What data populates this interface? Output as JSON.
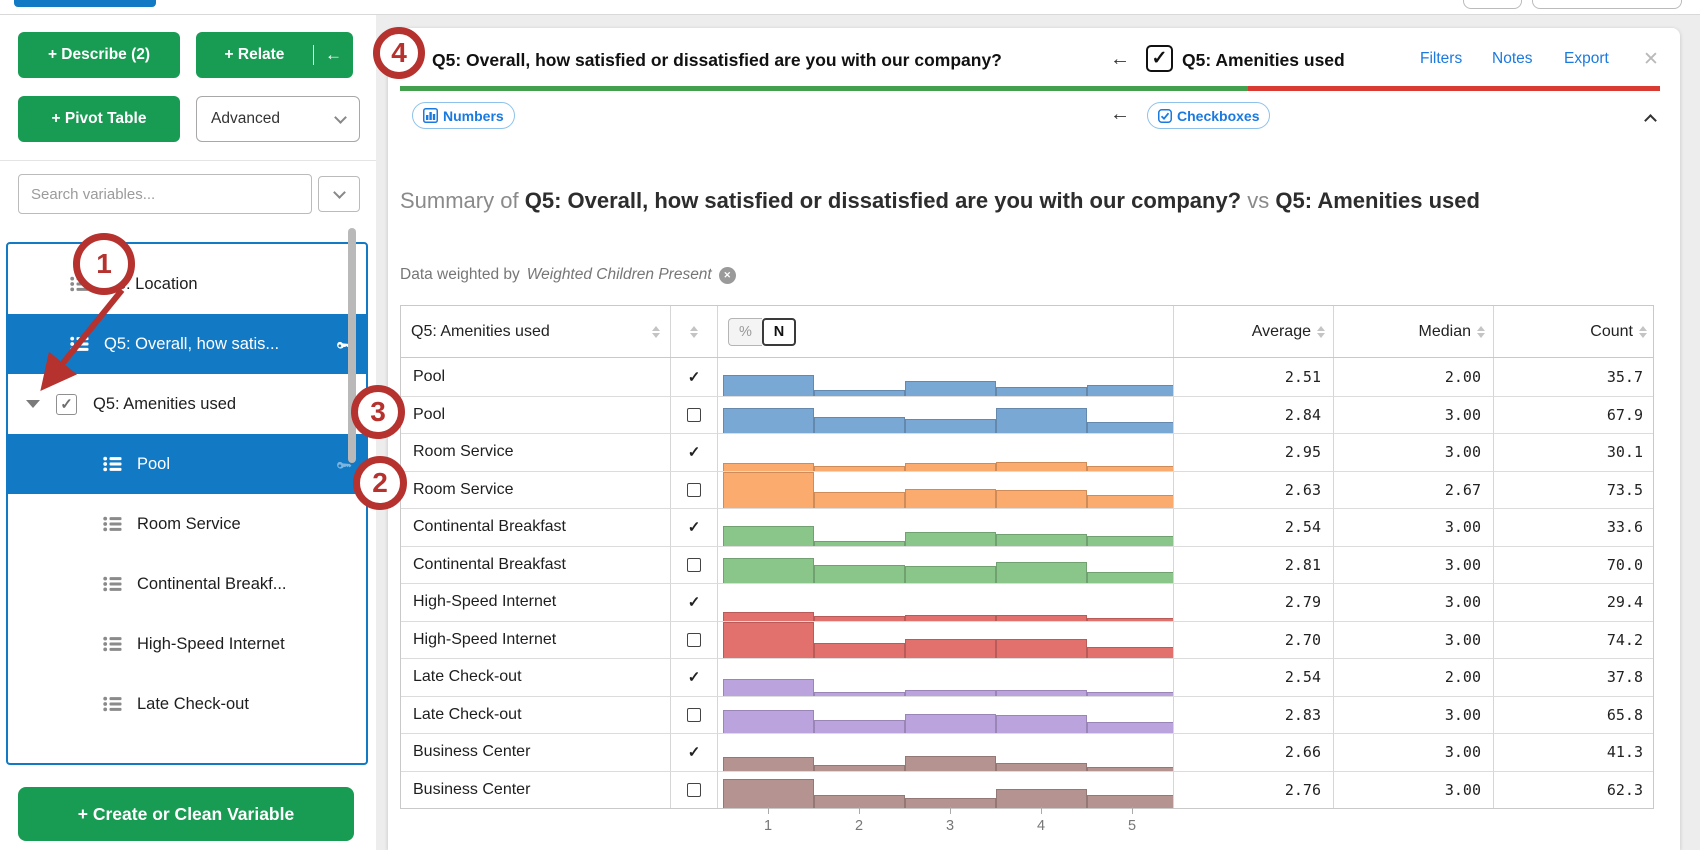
{
  "colors": {
    "brand_green": "#189b52",
    "selection_blue": "#1279c5",
    "link_blue": "#1a7ae0",
    "underline_green": "#44a04e",
    "underline_red": "#d93a32",
    "annotation_red": "#b5322e"
  },
  "sidebar": {
    "buttons": {
      "describe": "+ Describe (2)",
      "relate": "+ Relate",
      "relate_back": "←",
      "pivot": "+ Pivot Table",
      "advanced": "Advanced"
    },
    "search_placeholder": "Search variables...",
    "tree": [
      {
        "label": "Q3: Location",
        "icon": true,
        "indent": 1
      },
      {
        "label": "Q5: Overall, how satis...",
        "icon": true,
        "indent": 1,
        "selected": true,
        "key": "bright"
      },
      {
        "label": "Q5: Amenities used",
        "indent": 0,
        "caret": true,
        "checkbox": true
      },
      {
        "label": "Pool",
        "icon": true,
        "indent": 2,
        "selected": true,
        "key": "dim"
      },
      {
        "label": "Room Service",
        "icon": true,
        "indent": 2
      },
      {
        "label": "Continental Breakf...",
        "icon": true,
        "indent": 2
      },
      {
        "label": "High-Speed Internet",
        "icon": true,
        "indent": 2
      },
      {
        "label": "Late Check-out",
        "icon": true,
        "indent": 2
      }
    ],
    "create_button": "+ Create or Clean Variable"
  },
  "header": {
    "left_title": "Q5: Overall, how satisfied or dissatisfied are you with our company?",
    "right_title": "Q5: Amenities used",
    "back_arrow": "←",
    "checkbox_mark": "✓",
    "links": [
      "Filters",
      "Notes",
      "Export"
    ],
    "close": "✕",
    "left_tag": "Numbers",
    "right_tag": "Checkboxes"
  },
  "summary": {
    "prefix": "Summary of",
    "title1": "Q5: Overall, how satisfied or dissatisfied are you with our company?",
    "vs": "vs",
    "title2": "Q5: Amenities used",
    "weight_prefix": "Data weighted by",
    "weight_name": "Weighted Children Present"
  },
  "table": {
    "col1_header": "Q5: Amenities used",
    "toggle": [
      "%",
      "N"
    ],
    "toggle_selected": "N",
    "value_headers": [
      "Average",
      "Median",
      "Count"
    ],
    "axis_ticks": [
      "1",
      "2",
      "3",
      "4",
      "5"
    ],
    "rows": [
      {
        "label": "Pool",
        "checked": true,
        "average": "2.51",
        "median": "2.00",
        "count": "35.7",
        "color": "#7aa8d4",
        "bars": [
          0.55,
          0.15,
          0.38,
          0.22,
          0.28
        ]
      },
      {
        "label": "Pool",
        "checked": false,
        "average": "2.84",
        "median": "3.00",
        "count": "67.9",
        "color": "#7aa8d4",
        "bars": [
          0.68,
          0.44,
          0.38,
          0.68,
          0.3
        ]
      },
      {
        "label": "Room Service",
        "checked": true,
        "average": "2.95",
        "median": "3.00",
        "count": "30.1",
        "color": "#fbab6e",
        "bars": [
          0.2,
          0.12,
          0.21,
          0.24,
          0.12
        ]
      },
      {
        "label": "Room Service",
        "checked": false,
        "average": "2.63",
        "median": "2.67",
        "count": "73.5",
        "color": "#fbab6e",
        "bars": [
          0.95,
          0.44,
          0.5,
          0.48,
          0.36
        ]
      },
      {
        "label": "Continental Breakfast",
        "checked": true,
        "average": "2.54",
        "median": "3.00",
        "count": "33.6",
        "color": "#8ac58a",
        "bars": [
          0.52,
          0.12,
          0.36,
          0.32,
          0.26
        ]
      },
      {
        "label": "Continental Breakfast",
        "checked": false,
        "average": "2.81",
        "median": "3.00",
        "count": "70.0",
        "color": "#8ac58a",
        "bars": [
          0.66,
          0.47,
          0.45,
          0.55,
          0.3
        ]
      },
      {
        "label": "High-Speed Internet",
        "checked": true,
        "average": "2.79",
        "median": "3.00",
        "count": "29.4",
        "color": "#e2716d",
        "bars": [
          0.22,
          0.13,
          0.16,
          0.14,
          0.08
        ]
      },
      {
        "label": "High-Speed Internet",
        "checked": false,
        "average": "2.70",
        "median": "3.00",
        "count": "74.2",
        "color": "#e2716d",
        "bars": [
          0.95,
          0.4,
          0.5,
          0.52,
          0.3
        ]
      },
      {
        "label": "Late Check-out",
        "checked": true,
        "average": "2.54",
        "median": "2.00",
        "count": "37.8",
        "color": "#bba3de",
        "bars": [
          0.45,
          0.1,
          0.15,
          0.14,
          0.1
        ]
      },
      {
        "label": "Late Check-out",
        "checked": false,
        "average": "2.83",
        "median": "3.00",
        "count": "65.8",
        "color": "#bba3de",
        "bars": [
          0.62,
          0.36,
          0.5,
          0.48,
          0.3
        ]
      },
      {
        "label": "Business Center",
        "checked": true,
        "average": "2.66",
        "median": "3.00",
        "count": "41.3",
        "color": "#b59390",
        "bars": [
          0.35,
          0.15,
          0.4,
          0.2,
          0.1
        ]
      },
      {
        "label": "Business Center",
        "checked": false,
        "average": "2.76",
        "median": "3.00",
        "count": "62.3",
        "color": "#b59390",
        "bars": [
          0.78,
          0.35,
          0.28,
          0.5,
          0.35
        ]
      }
    ]
  },
  "annotations": [
    {
      "n": "1"
    },
    {
      "n": "2"
    },
    {
      "n": "3"
    },
    {
      "n": "4"
    }
  ]
}
